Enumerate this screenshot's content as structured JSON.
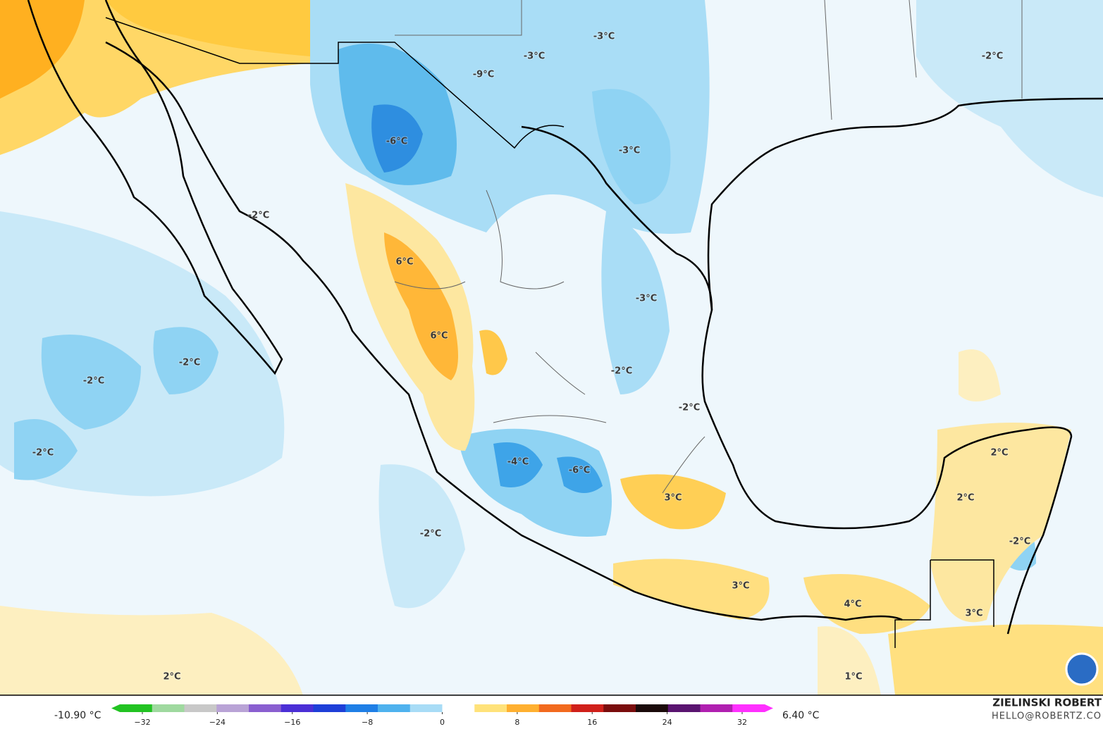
{
  "map": {
    "labels": [
      "-3°C",
      "-3°C",
      "-2°C",
      "-9°C",
      "-6°C",
      "-3°C",
      "-2°C",
      "6°C",
      "-3°C",
      "6°C",
      "-2°C",
      "-2°C",
      "-2°C",
      "-2°C",
      "2°C",
      "-2°C",
      "-4°C",
      "-6°C",
      "2°C",
      "3°C",
      "-2°C",
      "-2°C",
      "3°C",
      "4°C",
      "3°C",
      "2°C",
      "1°C"
    ]
  },
  "colorbar": {
    "min_label": "-10.90 °C",
    "max_label": "6.40 °C",
    "ticks": [
      "−32",
      "−24",
      "−16",
      "−8",
      "0",
      "8",
      "16",
      "24",
      "32"
    ]
  },
  "credit": {
    "name": "ZIELINSKI ROBERT",
    "email": "HELLO@ROBERTZ.CO"
  }
}
